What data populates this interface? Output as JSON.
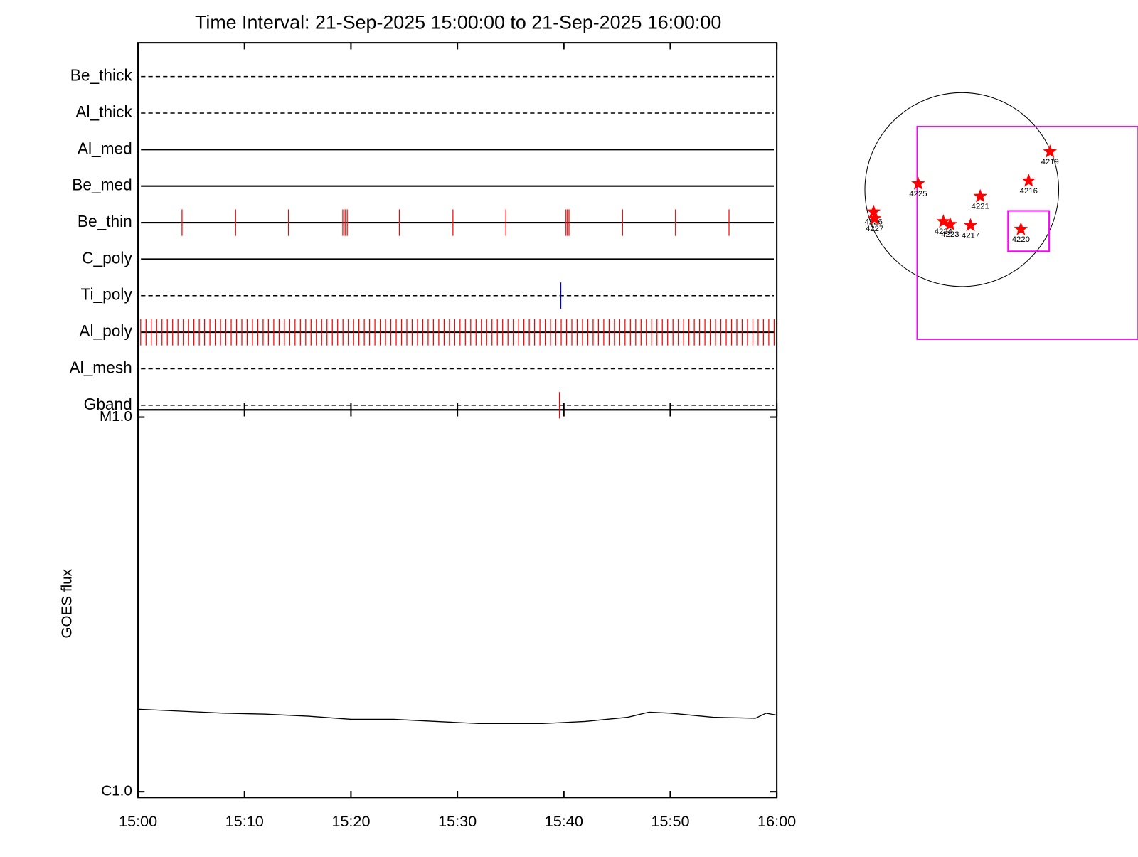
{
  "chart_data": [
    {
      "type": "timeline",
      "title": "Time Interval: 21-Sep-2025 15:00:00 to 21-Sep-2025 16:00:00",
      "channels": [
        {
          "name": "Be_thick",
          "style": "dashed",
          "color": "#ff0000",
          "events": []
        },
        {
          "name": "Al_thick",
          "style": "dashed",
          "color": "#ff0000",
          "events": []
        },
        {
          "name": "Al_med",
          "style": "solid",
          "color": "#ff0000",
          "events": []
        },
        {
          "name": "Be_med",
          "style": "solid",
          "color": "#ff0000",
          "events": []
        },
        {
          "name": "Be_thin",
          "style": "solid",
          "color": "#ff0000",
          "events": [
            "15:04:08",
            "15:09:10",
            "15:14:08",
            "15:19:14",
            "15:19:27",
            "15:19:39",
            "15:24:33",
            "15:29:35",
            "15:34:33",
            "15:40:12",
            "15:40:20",
            "15:40:29",
            "15:45:31",
            "15:50:29",
            "15:55:31"
          ]
        },
        {
          "name": "C_poly",
          "style": "solid",
          "color": "#ff0000",
          "events": []
        },
        {
          "name": "Ti_poly",
          "style": "dashed",
          "color": "#0000cc",
          "events": [
            "15:39:43"
          ]
        },
        {
          "name": "Al_poly",
          "style": "solid",
          "color": "#ff0000",
          "events": [
            "15:00:15",
            "15:00:45",
            "15:01:15",
            "15:01:45",
            "15:02:15",
            "15:02:45",
            "15:03:15",
            "15:03:45",
            "15:04:15",
            "15:04:45",
            "15:05:15",
            "15:05:45",
            "15:06:15",
            "15:06:45",
            "15:07:15",
            "15:07:45",
            "15:08:15",
            "15:08:45",
            "15:09:15",
            "15:09:45",
            "15:10:15",
            "15:10:45",
            "15:11:15",
            "15:11:45",
            "15:12:15",
            "15:12:45",
            "15:13:15",
            "15:13:45",
            "15:14:15",
            "15:14:45",
            "15:15:15",
            "15:15:45",
            "15:16:15",
            "15:16:45",
            "15:17:15",
            "15:17:45",
            "15:18:15",
            "15:18:45",
            "15:19:15",
            "15:19:45",
            "15:20:15",
            "15:20:45",
            "15:21:15",
            "15:21:45",
            "15:22:15",
            "15:22:45",
            "15:23:15",
            "15:23:45",
            "15:24:15",
            "15:24:45",
            "15:25:15",
            "15:25:45",
            "15:26:15",
            "15:26:45",
            "15:27:15",
            "15:27:45",
            "15:28:15",
            "15:28:45",
            "15:29:15",
            "15:29:45",
            "15:30:15",
            "15:30:45",
            "15:31:15",
            "15:31:45",
            "15:32:15",
            "15:32:45",
            "15:33:15",
            "15:33:45",
            "15:34:15",
            "15:34:45",
            "15:35:15",
            "15:35:45",
            "15:36:15",
            "15:36:45",
            "15:37:15",
            "15:37:45",
            "15:38:15",
            "15:38:45",
            "15:39:15",
            "15:39:45",
            "15:40:15",
            "15:40:45",
            "15:41:15",
            "15:41:45",
            "15:42:15",
            "15:42:45",
            "15:43:15",
            "15:43:45",
            "15:44:15",
            "15:44:45",
            "15:45:15",
            "15:45:45",
            "15:46:15",
            "15:46:45",
            "15:47:15",
            "15:47:45",
            "15:48:15",
            "15:48:45",
            "15:49:15",
            "15:49:45",
            "15:50:15",
            "15:50:45",
            "15:51:15",
            "15:51:45",
            "15:52:15",
            "15:52:45",
            "15:53:15",
            "15:53:45",
            "15:54:15",
            "15:54:45",
            "15:55:15",
            "15:55:45",
            "15:56:15",
            "15:56:45",
            "15:57:15",
            "15:57:45",
            "15:58:15",
            "15:58:45",
            "15:59:15",
            "15:59:45"
          ]
        },
        {
          "name": "Al_mesh",
          "style": "dashed",
          "color": "#ff0000",
          "events": []
        },
        {
          "name": "Gband",
          "style": "dashed",
          "color": "#ff0000",
          "events": [
            "15:39:35"
          ]
        }
      ]
    },
    {
      "type": "line",
      "ylabel": "GOES flux",
      "log_y": true,
      "color": "#000000",
      "x": [
        "15:00",
        "15:04",
        "15:08",
        "15:12",
        "15:16",
        "15:20",
        "15:24",
        "15:28",
        "15:32",
        "15:34",
        "15:38",
        "15:42",
        "15:46",
        "15:48",
        "15:50",
        "15:54",
        "15:58",
        "15:59",
        "16:00"
      ],
      "values": [
        1.66e-06,
        1.64e-06,
        1.62e-06,
        1.61e-06,
        1.59e-06,
        1.56e-06,
        1.56e-06,
        1.54e-06,
        1.52e-06,
        1.52e-06,
        1.52e-06,
        1.54e-06,
        1.58e-06,
        1.63e-06,
        1.62e-06,
        1.58e-06,
        1.57e-06,
        1.62e-06,
        1.6e-06
      ],
      "xlim": [
        "15:00",
        "16:00"
      ],
      "xticks": [
        "15:00",
        "15:10",
        "15:20",
        "15:30",
        "15:40",
        "15:50",
        "16:00"
      ],
      "ylim": [
        9.65e-07,
        1.046e-05
      ],
      "yticks": [
        {
          "value": 1e-06,
          "label": "C1.0"
        },
        {
          "value": 1e-05,
          "label": "M1.0"
        }
      ]
    },
    {
      "type": "disc",
      "color": "#ff0000",
      "regions": [
        {
          "label": "4219",
          "x": 0.91,
          "y": 0.39
        },
        {
          "label": "4225",
          "x": -0.45,
          "y": 0.06
        },
        {
          "label": "4216",
          "x": 0.69,
          "y": 0.09
        },
        {
          "label": "4221",
          "x": 0.19,
          "y": -0.07
        },
        {
          "label": "4226",
          "x": -0.91,
          "y": -0.23
        },
        {
          "label": "4227",
          "x": -0.9,
          "y": -0.3
        },
        {
          "label": "4224",
          "x": -0.19,
          "y": -0.33
        },
        {
          "label": "4223",
          "x": -0.12,
          "y": -0.36
        },
        {
          "label": "4217",
          "x": 0.09,
          "y": -0.37
        },
        {
          "label": "4220",
          "x": 0.61,
          "y": -0.41
        }
      ]
    }
  ]
}
